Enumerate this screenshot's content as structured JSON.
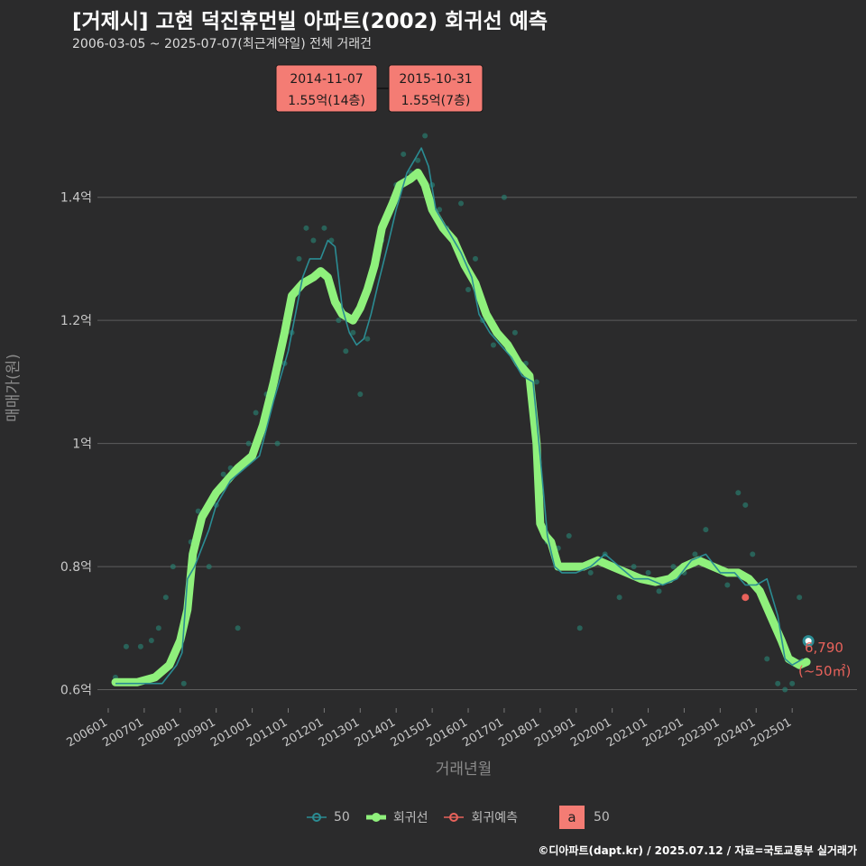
{
  "header": {
    "title": "[거제시] 고현 덕진휴먼빌 아파트(2002) 회귀선 예측",
    "subtitle": "2006-03-05 ~ 2025-07-07(최근계약일) 전체 거래건"
  },
  "legend": {
    "series_50": "50",
    "regression": "회귀선",
    "prediction": "회귀예측",
    "box_letter": "a",
    "box_label": "50"
  },
  "credit": "©디아파트(dapt.kr) / 2025.07.12 / 자료=국토교통부 실거래가",
  "colors": {
    "background": "#2b2b2c",
    "regression": "#8ff07c",
    "series_50": "#2b8c93",
    "prediction": "#e8625b",
    "callout": "#f47c74"
  },
  "chart_data": {
    "type": "line",
    "title": "[거제시] 고현 덕진휴먼빌 아파트(2002) 회귀선 예측",
    "xlabel": "거래년월",
    "ylabel": "매매가(원)",
    "ylim": [
      0.57,
      1.53
    ],
    "xlim": [
      2005.7,
      2026.8
    ],
    "yticks": [
      0.6,
      0.8,
      1.0,
      1.2,
      1.4
    ],
    "ytick_labels": [
      "0.6억",
      "0.8억",
      "1억",
      "1.2억",
      "1.4억"
    ],
    "xticks": [
      2006,
      2007,
      2008,
      2009,
      2010,
      2011,
      2012,
      2013,
      2014,
      2015,
      2016,
      2017,
      2018,
      2019,
      2020,
      2021,
      2022,
      2023,
      2024,
      2025
    ],
    "xtick_labels": [
      "200601",
      "200701",
      "200801",
      "200901",
      "201001",
      "201101",
      "201201",
      "201301",
      "201401",
      "201501",
      "201601",
      "201701",
      "201801",
      "201901",
      "202001",
      "202101",
      "202201",
      "202301",
      "202401",
      "202501"
    ],
    "series": [
      {
        "name": "회귀선",
        "x": [
          2006.2,
          2006.8,
          2007.3,
          2007.7,
          2008.0,
          2008.2,
          2008.35,
          2008.6,
          2009.0,
          2009.3,
          2009.6,
          2010.0,
          2010.3,
          2010.6,
          2010.9,
          2011.1,
          2011.4,
          2011.7,
          2011.9,
          2012.1,
          2012.3,
          2012.5,
          2012.8,
          2013.0,
          2013.2,
          2013.4,
          2013.6,
          2013.9,
          2014.1,
          2014.4,
          2014.6,
          2014.8,
          2015.0,
          2015.3,
          2015.6,
          2015.9,
          2016.2,
          2016.5,
          2016.8,
          2017.1,
          2017.4,
          2017.7,
          2017.9,
          2018.0,
          2018.15,
          2018.3,
          2018.5,
          2018.8,
          2019.2,
          2019.6,
          2020.0,
          2020.4,
          2020.8,
          2021.2,
          2021.6,
          2022.0,
          2022.4,
          2022.8,
          2023.2,
          2023.5,
          2023.8,
          2024.1,
          2024.4,
          2024.7,
          2024.9,
          2025.2,
          2025.4
        ],
        "values": [
          0.612,
          0.612,
          0.62,
          0.64,
          0.68,
          0.73,
          0.82,
          0.88,
          0.92,
          0.94,
          0.96,
          0.98,
          1.03,
          1.1,
          1.18,
          1.24,
          1.26,
          1.27,
          1.28,
          1.27,
          1.23,
          1.21,
          1.2,
          1.22,
          1.25,
          1.29,
          1.35,
          1.39,
          1.42,
          1.43,
          1.44,
          1.42,
          1.38,
          1.35,
          1.33,
          1.29,
          1.26,
          1.21,
          1.18,
          1.16,
          1.13,
          1.11,
          1.0,
          0.87,
          0.85,
          0.84,
          0.8,
          0.8,
          0.8,
          0.81,
          0.8,
          0.79,
          0.78,
          0.775,
          0.78,
          0.8,
          0.81,
          0.8,
          0.79,
          0.79,
          0.78,
          0.76,
          0.72,
          0.68,
          0.65,
          0.64,
          0.645
        ]
      },
      {
        "name": "50",
        "x": [
          2006.2,
          2007.0,
          2007.5,
          2007.9,
          2008.05,
          2008.2,
          2008.4,
          2008.8,
          2009.0,
          2009.4,
          2009.8,
          2010.2,
          2010.6,
          2011.0,
          2011.2,
          2011.4,
          2011.6,
          2011.9,
          2012.1,
          2012.3,
          2012.5,
          2012.7,
          2012.9,
          2013.1,
          2013.3,
          2013.5,
          2013.8,
          2014.0,
          2014.3,
          2014.5,
          2014.7,
          2014.9,
          2015.1,
          2015.3,
          2015.5,
          2015.8,
          2016.1,
          2016.3,
          2016.6,
          2016.9,
          2017.2,
          2017.5,
          2017.8,
          2018.0,
          2018.2,
          2018.4,
          2018.6,
          2019.0,
          2019.4,
          2019.8,
          2020.2,
          2020.6,
          2021.0,
          2021.4,
          2021.8,
          2022.2,
          2022.6,
          2023.0,
          2023.4,
          2023.7,
          2024.0,
          2024.3,
          2024.6,
          2024.8,
          2025.0,
          2025.3
        ],
        "values": [
          0.61,
          0.61,
          0.61,
          0.64,
          0.66,
          0.78,
          0.8,
          0.86,
          0.9,
          0.94,
          0.96,
          0.98,
          1.07,
          1.15,
          1.21,
          1.27,
          1.3,
          1.3,
          1.33,
          1.32,
          1.22,
          1.18,
          1.16,
          1.17,
          1.21,
          1.26,
          1.33,
          1.38,
          1.44,
          1.46,
          1.48,
          1.45,
          1.38,
          1.36,
          1.34,
          1.31,
          1.27,
          1.21,
          1.18,
          1.16,
          1.14,
          1.11,
          1.1,
          0.98,
          0.85,
          0.8,
          0.79,
          0.79,
          0.8,
          0.82,
          0.8,
          0.78,
          0.78,
          0.77,
          0.78,
          0.81,
          0.82,
          0.79,
          0.79,
          0.77,
          0.77,
          0.78,
          0.72,
          0.65,
          0.64,
          0.65
        ]
      }
    ],
    "scatter": {
      "name": "실거래",
      "x": [
        2006.2,
        2006.5,
        2006.9,
        2007.2,
        2007.4,
        2007.6,
        2007.8,
        2008.1,
        2008.3,
        2008.5,
        2008.8,
        2009.0,
        2009.2,
        2009.4,
        2009.6,
        2009.9,
        2010.1,
        2010.4,
        2010.7,
        2010.9,
        2011.1,
        2011.3,
        2011.5,
        2011.7,
        2011.9,
        2012.0,
        2012.2,
        2012.4,
        2012.6,
        2012.8,
        2013.0,
        2013.2,
        2013.4,
        2013.6,
        2013.8,
        2014.0,
        2014.2,
        2014.4,
        2014.6,
        2014.8,
        2015.0,
        2015.2,
        2015.4,
        2015.6,
        2015.8,
        2016.0,
        2016.2,
        2016.4,
        2016.7,
        2017.0,
        2017.3,
        2017.6,
        2017.9,
        2018.2,
        2018.5,
        2018.8,
        2019.1,
        2019.4,
        2019.8,
        2020.2,
        2020.6,
        2021.0,
        2021.3,
        2021.7,
        2022.0,
        2022.3,
        2022.6,
        2022.9,
        2023.2,
        2023.5,
        2023.7,
        2023.9,
        2024.1,
        2024.3,
        2024.6,
        2024.8,
        2025.0,
        2025.2
      ],
      "values": [
        0.62,
        0.67,
        0.67,
        0.68,
        0.7,
        0.75,
        0.8,
        0.61,
        0.84,
        0.89,
        0.8,
        0.9,
        0.95,
        0.96,
        0.7,
        1.0,
        1.05,
        1.08,
        1.0,
        1.13,
        1.18,
        1.3,
        1.35,
        1.33,
        1.28,
        1.35,
        1.33,
        1.2,
        1.15,
        1.18,
        1.08,
        1.17,
        1.29,
        1.33,
        1.38,
        1.42,
        1.47,
        1.44,
        1.46,
        1.5,
        1.42,
        1.38,
        1.35,
        1.33,
        1.39,
        1.25,
        1.3,
        1.2,
        1.16,
        1.4,
        1.18,
        1.13,
        1.1,
        0.84,
        0.83,
        0.85,
        0.7,
        0.79,
        0.82,
        0.75,
        0.8,
        0.79,
        0.76,
        0.8,
        0.79,
        0.82,
        0.86,
        0.8,
        0.77,
        0.92,
        0.9,
        0.82,
        0.76,
        0.65,
        0.61,
        0.6,
        0.61,
        0.75
      ]
    },
    "prediction": {
      "x": 2023.7,
      "y": 0.75
    },
    "last_point": {
      "x": 2025.45,
      "y": 0.679,
      "label_value": "6,790",
      "label_area": "(~50㎡)"
    },
    "callouts": [
      {
        "date": "2014-11-07",
        "price": "1.55억(14층)"
      },
      {
        "date": "2015-10-31",
        "price": "1.55억(7층)"
      }
    ]
  }
}
